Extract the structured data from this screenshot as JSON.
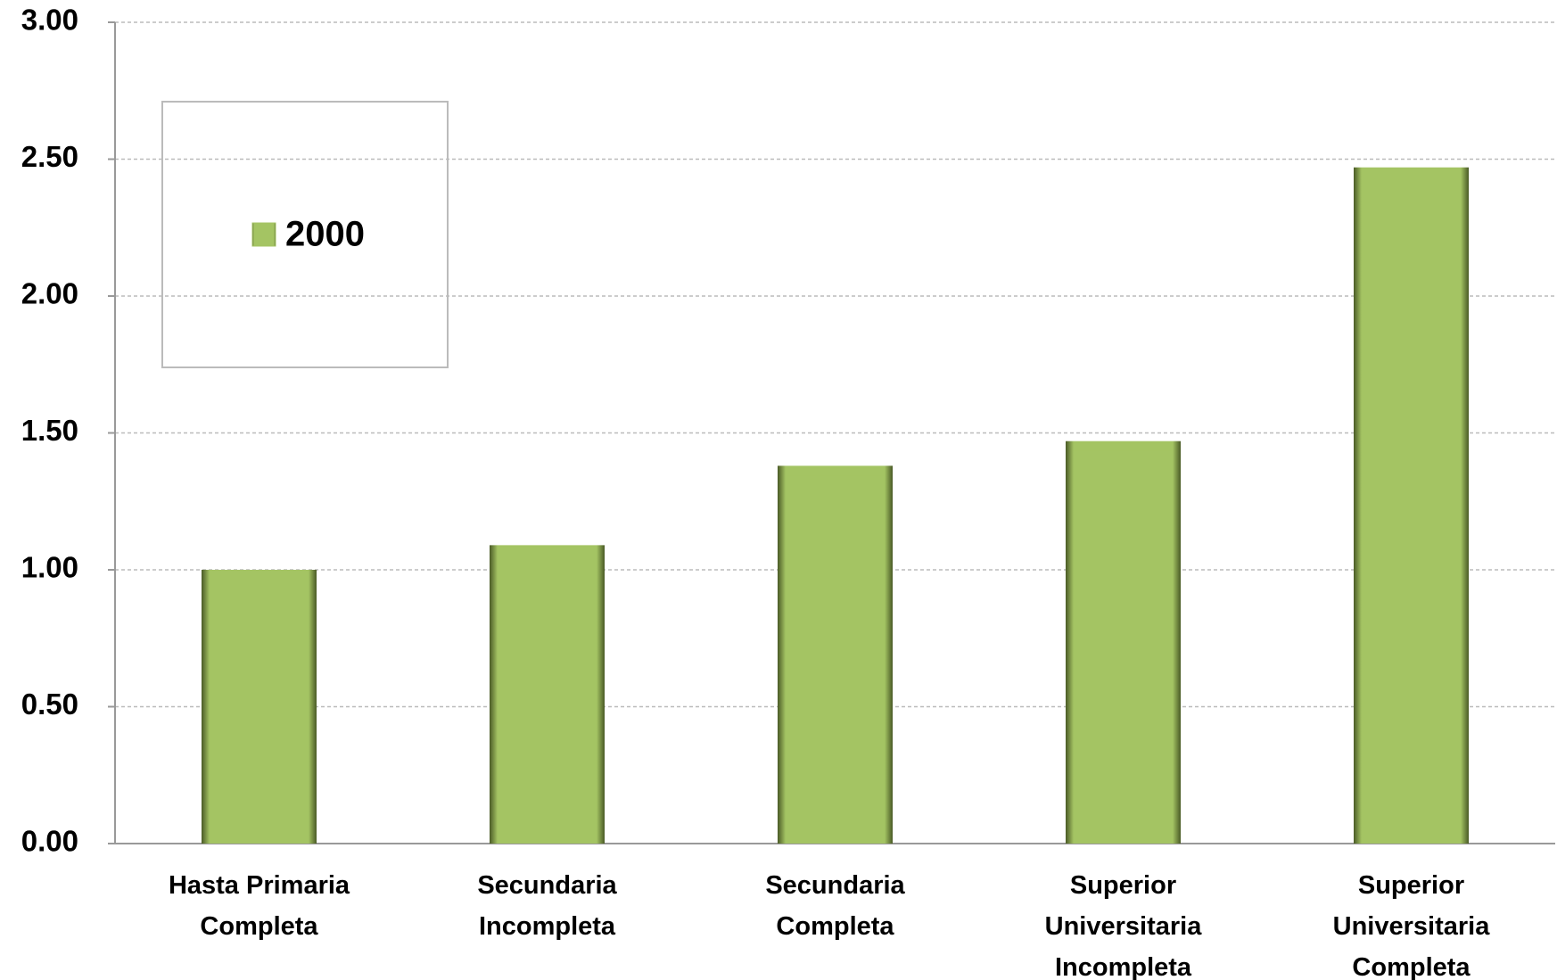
{
  "chart_data": {
    "type": "bar",
    "categories": [
      "Hasta Primaria Completa",
      "Secundaria Incompleta",
      "Secundaria Completa",
      "Superior Universitaria Incompleta",
      "Superior Universitaria Completa"
    ],
    "series": [
      {
        "name": "2000",
        "color": "#a4c463",
        "values": [
          1.0,
          1.09,
          1.38,
          1.47,
          2.47
        ]
      }
    ],
    "ylim": [
      0,
      3
    ],
    "yticks": [
      {
        "value": 0,
        "label": "0.00"
      },
      {
        "value": 0.5,
        "label": "0.50"
      },
      {
        "value": 1,
        "label": "1.00"
      },
      {
        "value": 1.5,
        "label": "1.50"
      },
      {
        "value": 2,
        "label": "2.00"
      },
      {
        "value": 2.5,
        "label": "2.50"
      },
      {
        "value": 3,
        "label": "3.00"
      }
    ],
    "grid": true
  }
}
